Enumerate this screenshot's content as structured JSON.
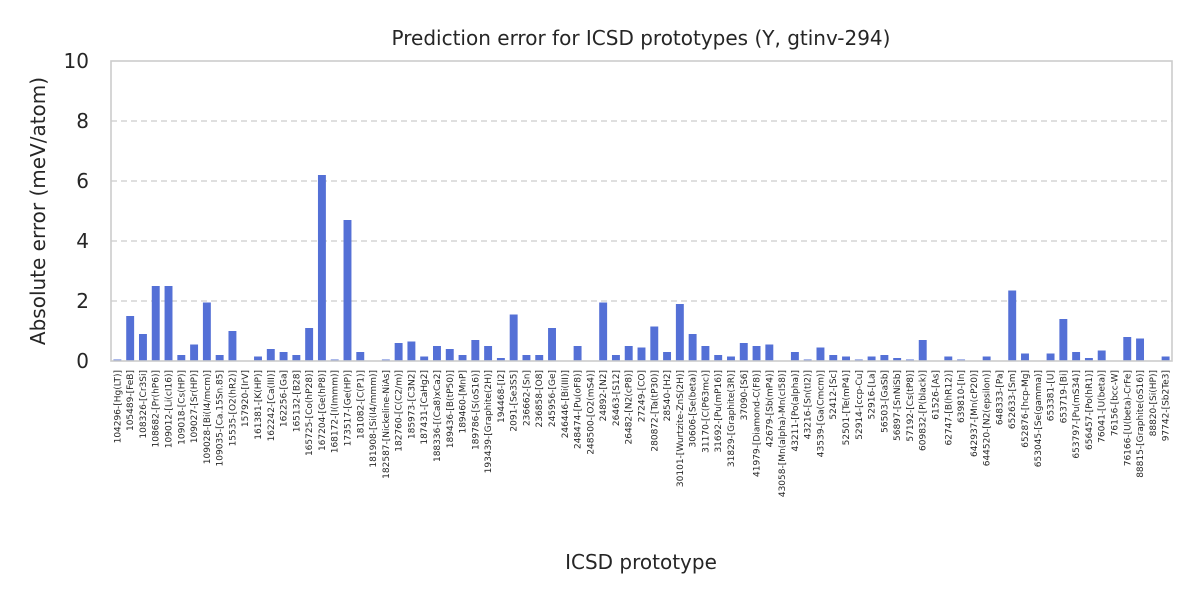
{
  "chart_data": {
    "type": "bar",
    "title": "Prediction error for ICSD prototypes (Y, gtinv-294)",
    "xlabel": "ICSD prototype",
    "ylabel": "Absolute error (meV/atom)",
    "ylim": [
      0,
      10
    ],
    "yticks": [
      0,
      2,
      4,
      6,
      8,
      10
    ],
    "grid": true,
    "bar_color": "#5470d6",
    "categories": [
      "104296-[Hg(LT)]",
      "105489-[FeB]",
      "108326-[Cr3Si]",
      "108682-[Pr(hP6)]",
      "109012-[Li(cI16)]",
      "109018-[Cs(HP)]",
      "109027-[Sr(HP)]",
      "109028-[Bi(I4/mcm)]",
      "109035-[Ca.15Sn.85]",
      "15535-[O2(hR2)]",
      "157920-[IrV]",
      "161381-[K(HP)]",
      "162242-[Ca(III)]",
      "162256-[Ga]",
      "165132-[B28]",
      "165725-[Co(hP28)]",
      "167204-[Ge(hP8)]",
      "168172-[I(Immm)]",
      "173517-[Ge(HP)]",
      "181082-[C(P1)]",
      "181908-[Si(I4/mmm)]",
      "182587-[Nickeline-NiAs]",
      "182760-[C(C2/m)]",
      "185973-[C3N2]",
      "187431-[CaHg2]",
      "188336-[(Ca8)xCa2]",
      "189436-[B(tP50)]",
      "189460-[MnP]",
      "189786-[S(oS16)]",
      "193439-[Graphite(2H)]",
      "194468-[I2]",
      "2091-[Se3S5]",
      "236662-[Sn]",
      "236858-[O8]",
      "245956-[Ge]",
      "246446-[Bi(III)]",
      "248474-[Pu(oF8)]",
      "248500-[O2(mS4)]",
      "24892-[N2]",
      "26463-[S12]",
      "26482-[N2(cP8)]",
      "27249-[CO]",
      "280872-[Ta(tP30)]",
      "28540-[H2]",
      "30101-[Wurtzite-ZnS(2H)]",
      "30606-[Se(beta)]",
      "31170-[C(P63mc)]",
      "31692-[Pu(mP16)]",
      "31829-[Graphite(3R)]",
      "37090-[S6]",
      "41979-[Diamond-C(F8)]",
      "42679-[Sb(mP4)]",
      "43058-[Mn(alpha)-Mn(cI58)]",
      "43211-[Po(alpha)]",
      "43216-[Sn(tI2)]",
      "43539-[Ga(Cmcm)]",
      "52412-[Sc]",
      "52501-[Te(mP4)]",
      "52914-[ccp-Cu]",
      "52916-[La]",
      "56503-[GaSb]",
      "56897-[SnNiSb]",
      "57192-[Cs(tP8)]",
      "609832-[P(black)]",
      "61526-[As]",
      "62747-[B(hR12)]",
      "639810-[In]",
      "642937-[Mn(cP20)]",
      "644520-[N2(epsilon)]",
      "648333-[Pa]",
      "652633-[Sm]",
      "652876-[hcp-Mg]",
      "653045-[Se(gamma)]",
      "653381-[U]",
      "653719-[Bi]",
      "653797-[Pu(mS34)]",
      "656457-[Po(hR1)]",
      "76041-[U(beta)]",
      "76156-[bcc-W]",
      "76166-[U(beta)-CrFe]",
      "88815-[Graphite(oS16)]",
      "88820-[Si(HP)]",
      "97742-[Sb2Te3]"
    ],
    "values": [
      0.05,
      1.5,
      0.9,
      2.5,
      2.5,
      0.2,
      0.55,
      1.95,
      0.2,
      1.0,
      0.0,
      0.15,
      0.4,
      0.3,
      0.2,
      1.1,
      6.2,
      0.05,
      4.7,
      0.3,
      0.0,
      0.05,
      0.6,
      0.65,
      0.15,
      0.5,
      0.4,
      0.2,
      0.7,
      0.5,
      0.1,
      1.55,
      0.2,
      0.2,
      1.1,
      0.0,
      0.5,
      0.0,
      1.95,
      0.2,
      0.5,
      0.45,
      1.15,
      0.3,
      1.9,
      0.9,
      0.5,
      0.2,
      0.15,
      0.6,
      0.5,
      0.55,
      0.0,
      0.3,
      0.05,
      0.45,
      0.2,
      0.15,
      0.05,
      0.15,
      0.2,
      0.1,
      0.05,
      0.7,
      0.0,
      0.15,
      0.05,
      0.0,
      0.15,
      0.0,
      2.35,
      0.25,
      0.0,
      0.25,
      1.4,
      0.3,
      0.1,
      0.35,
      0.0,
      0.8,
      0.75,
      0.0,
      0.15
    ]
  }
}
